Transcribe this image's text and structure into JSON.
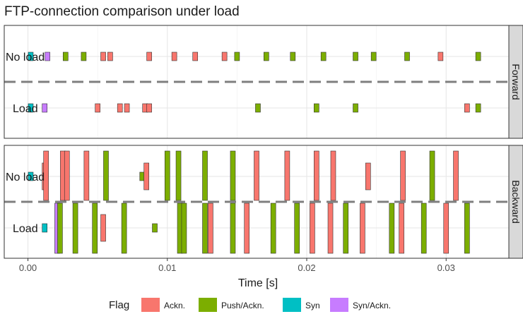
{
  "chart_data": {
    "type": "timeline",
    "title": "FTP-connection comparison under load",
    "xlabel": "Time [s]",
    "x_ticks": [
      0.0,
      0.01,
      0.02,
      0.03
    ],
    "x_tick_labels": [
      "0.00",
      "0.01",
      "0.02",
      "0.03"
    ],
    "xlim": [
      -0.0017,
      0.0345
    ],
    "legend": {
      "title": "Flag",
      "position": "bottom",
      "entries": [
        {
          "key": "ack",
          "label": "Ackn.",
          "color": "#F8766D"
        },
        {
          "key": "pushack",
          "label": "Push/Ackn.",
          "color": "#7CAE00"
        },
        {
          "key": "syn",
          "label": "Syn",
          "color": "#00BFC4"
        },
        {
          "key": "synack",
          "label": "Syn/Ackn.",
          "color": "#C77CFF"
        }
      ]
    },
    "facets": [
      {
        "strip": "Forward",
        "rows": [
          {
            "label": "No load",
            "packets": [
              {
                "t": 0.0002,
                "flag": "syn",
                "len": "s"
              },
              {
                "t": 0.0014,
                "flag": "synack",
                "len": "s"
              },
              {
                "t": 0.0027,
                "flag": "pushack",
                "len": "s"
              },
              {
                "t": 0.004,
                "flag": "pushack",
                "len": "s"
              },
              {
                "t": 0.0054,
                "flag": "ack",
                "len": "s"
              },
              {
                "t": 0.0059,
                "flag": "ack",
                "len": "s"
              },
              {
                "t": 0.0087,
                "flag": "ack",
                "len": "s"
              },
              {
                "t": 0.0105,
                "flag": "ack",
                "len": "s"
              },
              {
                "t": 0.012,
                "flag": "ack",
                "len": "s"
              },
              {
                "t": 0.0141,
                "flag": "ack",
                "len": "s"
              },
              {
                "t": 0.015,
                "flag": "pushack",
                "len": "s"
              },
              {
                "t": 0.0171,
                "flag": "pushack",
                "len": "s"
              },
              {
                "t": 0.019,
                "flag": "pushack",
                "len": "s"
              },
              {
                "t": 0.0212,
                "flag": "pushack",
                "len": "s"
              },
              {
                "t": 0.0235,
                "flag": "pushack",
                "len": "s"
              },
              {
                "t": 0.0248,
                "flag": "pushack",
                "len": "s"
              },
              {
                "t": 0.0272,
                "flag": "pushack",
                "len": "s"
              },
              {
                "t": 0.0296,
                "flag": "ack",
                "len": "s"
              },
              {
                "t": 0.0323,
                "flag": "pushack",
                "len": "s"
              }
            ]
          },
          {
            "label": "Load",
            "packets": [
              {
                "t": 0.0002,
                "flag": "syn",
                "len": "s"
              },
              {
                "t": 0.0012,
                "flag": "synack",
                "len": "s"
              },
              {
                "t": 0.005,
                "flag": "ack",
                "len": "s"
              },
              {
                "t": 0.0066,
                "flag": "ack",
                "len": "s"
              },
              {
                "t": 0.0071,
                "flag": "ack",
                "len": "s"
              },
              {
                "t": 0.0084,
                "flag": "ack",
                "len": "s"
              },
              {
                "t": 0.0087,
                "flag": "ack",
                "len": "s"
              },
              {
                "t": 0.0165,
                "flag": "pushack",
                "len": "s"
              },
              {
                "t": 0.0207,
                "flag": "pushack",
                "len": "s"
              },
              {
                "t": 0.0235,
                "flag": "pushack",
                "len": "s"
              },
              {
                "t": 0.0315,
                "flag": "ack",
                "len": "s"
              },
              {
                "t": 0.0323,
                "flag": "pushack",
                "len": "s"
              }
            ]
          }
        ]
      },
      {
        "strip": "Backward",
        "rows": [
          {
            "label": "No load",
            "packets": [
              {
                "t": 0.0002,
                "flag": "syn",
                "len": "s"
              },
              {
                "t": 0.0012,
                "flag": "ack",
                "len": "m"
              },
              {
                "t": 0.0013,
                "flag": "ack",
                "len": "l"
              },
              {
                "t": 0.0025,
                "flag": "ack",
                "len": "l"
              },
              {
                "t": 0.0028,
                "flag": "ack",
                "len": "l"
              },
              {
                "t": 0.0042,
                "flag": "ack",
                "len": "l"
              },
              {
                "t": 0.0056,
                "flag": "pushack",
                "len": "l"
              },
              {
                "t": 0.0082,
                "flag": "pushack",
                "len": "s"
              },
              {
                "t": 0.0085,
                "flag": "ack",
                "len": "m"
              },
              {
                "t": 0.01,
                "flag": "pushack",
                "len": "l"
              },
              {
                "t": 0.0108,
                "flag": "pushack",
                "len": "l"
              },
              {
                "t": 0.0127,
                "flag": "pushack",
                "len": "l"
              },
              {
                "t": 0.0147,
                "flag": "pushack",
                "len": "l"
              },
              {
                "t": 0.0164,
                "flag": "ack",
                "len": "l"
              },
              {
                "t": 0.0186,
                "flag": "ack",
                "len": "l"
              },
              {
                "t": 0.0207,
                "flag": "ack",
                "len": "l"
              },
              {
                "t": 0.0219,
                "flag": "ack",
                "len": "l"
              },
              {
                "t": 0.0244,
                "flag": "ack",
                "len": "m"
              },
              {
                "t": 0.0269,
                "flag": "ack",
                "len": "l"
              },
              {
                "t": 0.029,
                "flag": "pushack",
                "len": "l"
              },
              {
                "t": 0.0307,
                "flag": "ack",
                "len": "l"
              }
            ]
          },
          {
            "label": "Load",
            "packets": [
              {
                "t": 0.0012,
                "flag": "syn",
                "len": "s"
              },
              {
                "t": 0.0021,
                "flag": "synack",
                "len": "l"
              },
              {
                "t": 0.0023,
                "flag": "pushack",
                "len": "l"
              },
              {
                "t": 0.0034,
                "flag": "pushack",
                "len": "l"
              },
              {
                "t": 0.0048,
                "flag": "pushack",
                "len": "l"
              },
              {
                "t": 0.0054,
                "flag": "ack",
                "len": "m"
              },
              {
                "t": 0.0069,
                "flag": "pushack",
                "len": "l"
              },
              {
                "t": 0.0091,
                "flag": "pushack",
                "len": "s"
              },
              {
                "t": 0.0109,
                "flag": "pushack",
                "len": "l"
              },
              {
                "t": 0.0112,
                "flag": "pushack",
                "len": "l"
              },
              {
                "t": 0.0127,
                "flag": "pushack",
                "len": "l"
              },
              {
                "t": 0.0131,
                "flag": "ack",
                "len": "l"
              },
              {
                "t": 0.0147,
                "flag": "pushack",
                "len": "l"
              },
              {
                "t": 0.0157,
                "flag": "ack",
                "len": "l"
              },
              {
                "t": 0.0176,
                "flag": "pushack",
                "len": "l"
              },
              {
                "t": 0.0193,
                "flag": "pushack",
                "len": "l"
              },
              {
                "t": 0.0204,
                "flag": "ack",
                "len": "l"
              },
              {
                "t": 0.0217,
                "flag": "ack",
                "len": "l"
              },
              {
                "t": 0.0228,
                "flag": "pushack",
                "len": "l"
              },
              {
                "t": 0.024,
                "flag": "ack",
                "len": "l"
              },
              {
                "t": 0.0261,
                "flag": "pushack",
                "len": "l"
              },
              {
                "t": 0.0268,
                "flag": "ack",
                "len": "l"
              },
              {
                "t": 0.0284,
                "flag": "pushack",
                "len": "l"
              },
              {
                "t": 0.03,
                "flag": "ack",
                "len": "l"
              },
              {
                "t": 0.0315,
                "flag": "pushack",
                "len": "l"
              }
            ]
          }
        ]
      }
    ]
  }
}
